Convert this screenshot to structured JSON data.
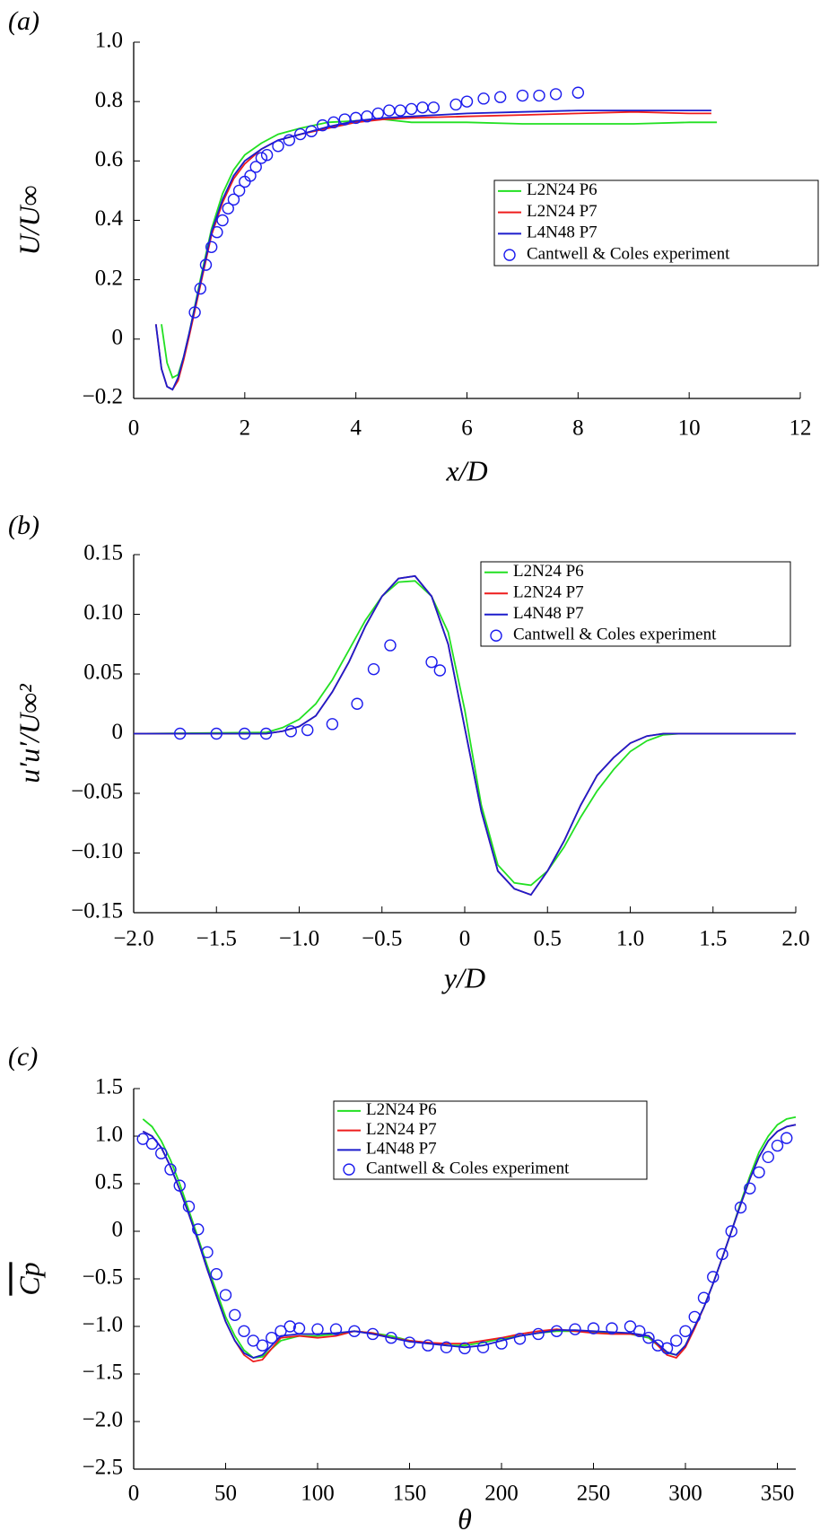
{
  "chart_data": [
    {
      "type": "line",
      "panel_label": "(a)",
      "xlabel": "x/D",
      "ylabel": "U/U∞",
      "xlim": [
        0,
        12
      ],
      "ylim": [
        -0.2,
        1.0
      ],
      "xticks": [
        0,
        2,
        4,
        6,
        8,
        10,
        12
      ],
      "yticks": [
        {
          "value": -0.2,
          "label": "−0.2"
        },
        0,
        0.2,
        0.4,
        0.6,
        0.8,
        {
          "value": 1.0,
          "label": "1.0"
        }
      ],
      "series": [
        {
          "name": "L2N24 P6",
          "color": "#22e022",
          "marker": "line",
          "x": [
            0.5,
            0.6,
            0.7,
            0.8,
            0.9,
            1.0,
            1.2,
            1.4,
            1.6,
            1.8,
            2.0,
            2.3,
            2.6,
            3.0,
            3.5,
            4.0,
            4.5,
            5,
            6,
            7,
            8,
            9,
            10,
            10.5
          ],
          "values": [
            0.05,
            -0.08,
            -0.13,
            -0.12,
            -0.06,
            0.02,
            0.2,
            0.37,
            0.49,
            0.57,
            0.62,
            0.66,
            0.69,
            0.71,
            0.73,
            0.735,
            0.74,
            0.73,
            0.73,
            0.725,
            0.725,
            0.725,
            0.73,
            0.73
          ]
        },
        {
          "name": "L2N24 P7",
          "color": "#ee1c1c",
          "marker": "line",
          "x": [
            0.4,
            0.5,
            0.6,
            0.7,
            0.8,
            0.9,
            1.0,
            1.2,
            1.4,
            1.6,
            1.8,
            2.0,
            2.3,
            2.6,
            3.0,
            3.5,
            4.0,
            4.5,
            5,
            6,
            7,
            8,
            9,
            10,
            10.4
          ],
          "values": [
            0.05,
            -0.1,
            -0.16,
            -0.17,
            -0.14,
            -0.07,
            0.01,
            0.18,
            0.35,
            0.46,
            0.54,
            0.59,
            0.64,
            0.67,
            0.69,
            0.71,
            0.73,
            0.74,
            0.745,
            0.75,
            0.755,
            0.76,
            0.765,
            0.76,
            0.76
          ]
        },
        {
          "name": "L4N48 P7",
          "color": "#1c1ccc",
          "marker": "line",
          "x": [
            0.4,
            0.5,
            0.6,
            0.7,
            0.8,
            0.9,
            1.0,
            1.2,
            1.4,
            1.6,
            1.8,
            2.0,
            2.3,
            2.6,
            3.0,
            3.5,
            4.0,
            4.5,
            5,
            6,
            7,
            8,
            9,
            10,
            10.4
          ],
          "values": [
            0.05,
            -0.1,
            -0.16,
            -0.17,
            -0.13,
            -0.06,
            0.02,
            0.19,
            0.36,
            0.47,
            0.55,
            0.6,
            0.64,
            0.67,
            0.69,
            0.715,
            0.735,
            0.745,
            0.75,
            0.76,
            0.765,
            0.77,
            0.77,
            0.77,
            0.77
          ]
        },
        {
          "name": "Cantwell & Coles experiment",
          "color": "#1c1cee",
          "marker": "circle",
          "x": [
            1.1,
            1.2,
            1.3,
            1.4,
            1.5,
            1.6,
            1.7,
            1.8,
            1.9,
            2.0,
            2.1,
            2.2,
            2.3,
            2.4,
            2.6,
            2.8,
            3.0,
            3.2,
            3.4,
            3.6,
            3.8,
            4.0,
            4.2,
            4.4,
            4.6,
            4.8,
            5.0,
            5.2,
            5.4,
            5.8,
            6.0,
            6.3,
            6.6,
            7.0,
            7.3,
            7.6,
            8.0
          ],
          "values": [
            0.09,
            0.17,
            0.25,
            0.31,
            0.36,
            0.4,
            0.44,
            0.47,
            0.5,
            0.53,
            0.55,
            0.58,
            0.61,
            0.62,
            0.65,
            0.67,
            0.69,
            0.7,
            0.72,
            0.73,
            0.74,
            0.745,
            0.75,
            0.76,
            0.77,
            0.77,
            0.775,
            0.78,
            0.78,
            0.79,
            0.8,
            0.81,
            0.815,
            0.82,
            0.82,
            0.825,
            0.83
          ]
        }
      ]
    },
    {
      "type": "line",
      "panel_label": "(b)",
      "xlabel": "y/D",
      "ylabel": "u′u′/U∞²",
      "xlim": [
        -2.0,
        2.0
      ],
      "ylim": [
        -0.15,
        0.15
      ],
      "xticks": [
        {
          "value": -2.0,
          "label": "−2.0"
        },
        {
          "value": -1.5,
          "label": "−1.5"
        },
        {
          "value": -1.0,
          "label": "−1.0"
        },
        {
          "value": -0.5,
          "label": "−0.5"
        },
        0,
        0.5,
        {
          "value": 1.0,
          "label": "1.0"
        },
        1.5,
        {
          "value": 2.0,
          "label": "2.0"
        }
      ],
      "yticks": [
        {
          "value": -0.15,
          "label": "−0.15"
        },
        {
          "value": -0.1,
          "label": "−0.10"
        },
        {
          "value": -0.05,
          "label": "−0.05"
        },
        0,
        0.05,
        {
          "value": 0.1,
          "label": "0.10"
        },
        0.15
      ],
      "series": [
        {
          "name": "L2N24 P6",
          "color": "#22e022",
          "marker": "line",
          "x": [
            -2,
            -1.2,
            -1.1,
            -1.0,
            -0.9,
            -0.8,
            -0.7,
            -0.6,
            -0.5,
            -0.4,
            -0.3,
            -0.2,
            -0.1,
            0,
            0.1,
            0.2,
            0.3,
            0.4,
            0.5,
            0.6,
            0.7,
            0.8,
            0.9,
            1.0,
            1.1,
            1.2,
            1.3,
            2.0
          ],
          "values": [
            0,
            0.001,
            0.005,
            0.012,
            0.025,
            0.045,
            0.07,
            0.095,
            0.115,
            0.127,
            0.128,
            0.115,
            0.085,
            0.02,
            -0.06,
            -0.11,
            -0.125,
            -0.127,
            -0.115,
            -0.095,
            -0.07,
            -0.048,
            -0.03,
            -0.015,
            -0.006,
            -0.001,
            0,
            0
          ]
        },
        {
          "name": "L2N24 P7",
          "color": "#ee1c1c",
          "marker": "line",
          "x": [
            -2,
            -1.2,
            -1.1,
            -1.0,
            -0.9,
            -0.8,
            -0.7,
            -0.6,
            -0.5,
            -0.4,
            -0.3,
            -0.2,
            -0.1,
            0,
            0.1,
            0.2,
            0.3,
            0.4,
            0.5,
            0.6,
            0.7,
            0.8,
            0.9,
            1.0,
            1.1,
            1.2,
            1.3,
            2.0
          ],
          "values": [
            0,
            0,
            0.002,
            0.006,
            0.015,
            0.035,
            0.06,
            0.09,
            0.115,
            0.13,
            0.132,
            0.115,
            0.075,
            0.005,
            -0.065,
            -0.115,
            -0.13,
            -0.135,
            -0.115,
            -0.09,
            -0.06,
            -0.035,
            -0.02,
            -0.008,
            -0.002,
            0,
            0,
            0
          ]
        },
        {
          "name": "L4N48 P7",
          "color": "#1c1ccc",
          "marker": "line",
          "x": [
            -2,
            -1.2,
            -1.1,
            -1.0,
            -0.9,
            -0.8,
            -0.7,
            -0.6,
            -0.5,
            -0.4,
            -0.3,
            -0.2,
            -0.1,
            0,
            0.1,
            0.2,
            0.3,
            0.4,
            0.5,
            0.6,
            0.7,
            0.8,
            0.9,
            1.0,
            1.1,
            1.2,
            1.3,
            2.0
          ],
          "values": [
            0,
            0,
            0.002,
            0.006,
            0.015,
            0.035,
            0.06,
            0.09,
            0.115,
            0.13,
            0.132,
            0.115,
            0.075,
            0.005,
            -0.065,
            -0.115,
            -0.13,
            -0.135,
            -0.115,
            -0.09,
            -0.06,
            -0.035,
            -0.02,
            -0.008,
            -0.002,
            0,
            0,
            0
          ]
        },
        {
          "name": "Cantwell & Coles experiment",
          "color": "#1c1cee",
          "marker": "circle",
          "x": [
            -1.72,
            -1.5,
            -1.33,
            -1.2,
            -1.05,
            -0.95,
            -0.8,
            -0.65,
            -0.55,
            -0.45,
            -0.2,
            -0.15
          ],
          "values": [
            0,
            0,
            0,
            0,
            0.002,
            0.003,
            0.008,
            0.025,
            0.054,
            0.074,
            0.06,
            0.053
          ]
        }
      ]
    },
    {
      "type": "line",
      "panel_label": "(c)",
      "xlabel": "θ",
      "ylabel": "Cp",
      "xlim": [
        0,
        360
      ],
      "ylim": [
        -2.5,
        1.5
      ],
      "xticks": [
        0,
        50,
        100,
        150,
        200,
        250,
        300,
        350
      ],
      "yticks": [
        {
          "value": -2.5,
          "label": "−2.5"
        },
        {
          "value": -2.0,
          "label": "−2.0"
        },
        {
          "value": -1.5,
          "label": "−1.5"
        },
        {
          "value": -1.0,
          "label": "−1.0"
        },
        {
          "value": -0.5,
          "label": "−0.5"
        },
        0,
        0.5,
        {
          "value": 1.0,
          "label": "1.0"
        },
        1.5
      ],
      "series": [
        {
          "name": "L2N24 P6",
          "color": "#22e022",
          "marker": "line",
          "x": [
            5,
            10,
            15,
            20,
            25,
            30,
            35,
            40,
            45,
            50,
            55,
            60,
            65,
            70,
            80,
            90,
            100,
            110,
            120,
            130,
            140,
            150,
            160,
            170,
            180,
            190,
            200,
            210,
            220,
            230,
            240,
            250,
            260,
            270,
            280,
            290,
            295,
            300,
            305,
            310,
            315,
            320,
            325,
            330,
            335,
            340,
            345,
            350,
            355,
            360
          ],
          "values": [
            1.18,
            1.1,
            0.95,
            0.75,
            0.5,
            0.22,
            -0.07,
            -0.36,
            -0.63,
            -0.9,
            -1.1,
            -1.25,
            -1.33,
            -1.32,
            -1.15,
            -1.1,
            -1.1,
            -1.08,
            -1.05,
            -1.07,
            -1.1,
            -1.15,
            -1.17,
            -1.2,
            -1.2,
            -1.17,
            -1.13,
            -1.1,
            -1.07,
            -1.05,
            -1.05,
            -1.06,
            -1.07,
            -1.08,
            -1.12,
            -1.28,
            -1.3,
            -1.2,
            -1.0,
            -0.8,
            -0.55,
            -0.28,
            0.0,
            0.3,
            0.58,
            0.83,
            1.0,
            1.12,
            1.18,
            1.2
          ]
        },
        {
          "name": "L2N24 P7",
          "color": "#ee1c1c",
          "marker": "line",
          "x": [
            5,
            10,
            15,
            20,
            25,
            30,
            35,
            40,
            45,
            50,
            55,
            60,
            65,
            70,
            80,
            90,
            100,
            110,
            120,
            130,
            140,
            150,
            160,
            170,
            180,
            190,
            200,
            210,
            220,
            230,
            240,
            250,
            260,
            270,
            280,
            290,
            295,
            300,
            305,
            310,
            315,
            320,
            325,
            330,
            335,
            340,
            345,
            350,
            355,
            360
          ],
          "values": [
            1.05,
            1.0,
            0.88,
            0.68,
            0.44,
            0.18,
            -0.1,
            -0.4,
            -0.68,
            -0.95,
            -1.15,
            -1.3,
            -1.37,
            -1.35,
            -1.12,
            -1.1,
            -1.12,
            -1.1,
            -1.05,
            -1.07,
            -1.12,
            -1.15,
            -1.17,
            -1.18,
            -1.18,
            -1.15,
            -1.12,
            -1.08,
            -1.05,
            -1.03,
            -1.05,
            -1.07,
            -1.08,
            -1.08,
            -1.1,
            -1.3,
            -1.33,
            -1.22,
            -1.02,
            -0.8,
            -0.55,
            -0.28,
            0.0,
            0.28,
            0.55,
            0.78,
            0.95,
            1.05,
            1.1,
            1.12
          ]
        },
        {
          "name": "L4N48 P7",
          "color": "#1c1ccc",
          "marker": "line",
          "x": [
            5,
            10,
            15,
            20,
            25,
            30,
            35,
            40,
            45,
            50,
            55,
            60,
            65,
            70,
            80,
            90,
            100,
            110,
            120,
            130,
            140,
            150,
            160,
            170,
            180,
            190,
            200,
            210,
            220,
            230,
            240,
            250,
            260,
            270,
            280,
            290,
            295,
            300,
            305,
            310,
            315,
            320,
            325,
            330,
            335,
            340,
            345,
            350,
            355,
            360
          ],
          "values": [
            1.05,
            1.0,
            0.88,
            0.68,
            0.44,
            0.18,
            -0.1,
            -0.4,
            -0.68,
            -0.95,
            -1.15,
            -1.28,
            -1.33,
            -1.3,
            -1.1,
            -1.08,
            -1.08,
            -1.07,
            -1.05,
            -1.08,
            -1.12,
            -1.16,
            -1.18,
            -1.2,
            -1.22,
            -1.2,
            -1.15,
            -1.1,
            -1.07,
            -1.04,
            -1.04,
            -1.05,
            -1.06,
            -1.07,
            -1.1,
            -1.27,
            -1.3,
            -1.2,
            -1.0,
            -0.8,
            -0.55,
            -0.28,
            0.0,
            0.28,
            0.55,
            0.78,
            0.95,
            1.05,
            1.1,
            1.12
          ]
        },
        {
          "name": "Cantwell & Coles experiment",
          "color": "#1c1cee",
          "marker": "circle",
          "x": [
            5,
            10,
            15,
            20,
            25,
            30,
            35,
            40,
            45,
            50,
            55,
            60,
            65,
            70,
            75,
            80,
            85,
            90,
            100,
            110,
            120,
            130,
            140,
            150,
            160,
            170,
            180,
            190,
            200,
            210,
            220,
            230,
            240,
            250,
            260,
            270,
            275,
            280,
            285,
            290,
            295,
            300,
            305,
            310,
            315,
            320,
            325,
            330,
            335,
            340,
            345,
            350,
            355
          ],
          "values": [
            0.97,
            0.92,
            0.82,
            0.65,
            0.48,
            0.26,
            0.02,
            -0.22,
            -0.45,
            -0.67,
            -0.88,
            -1.05,
            -1.15,
            -1.2,
            -1.12,
            -1.05,
            -1.0,
            -1.02,
            -1.03,
            -1.03,
            -1.05,
            -1.08,
            -1.12,
            -1.17,
            -1.2,
            -1.22,
            -1.23,
            -1.22,
            -1.18,
            -1.13,
            -1.08,
            -1.05,
            -1.03,
            -1.02,
            -1.02,
            -1.0,
            -1.05,
            -1.12,
            -1.2,
            -1.23,
            -1.15,
            -1.05,
            -0.9,
            -0.7,
            -0.48,
            -0.24,
            0.0,
            0.25,
            0.45,
            0.62,
            0.78,
            0.9,
            0.98
          ]
        }
      ]
    }
  ]
}
